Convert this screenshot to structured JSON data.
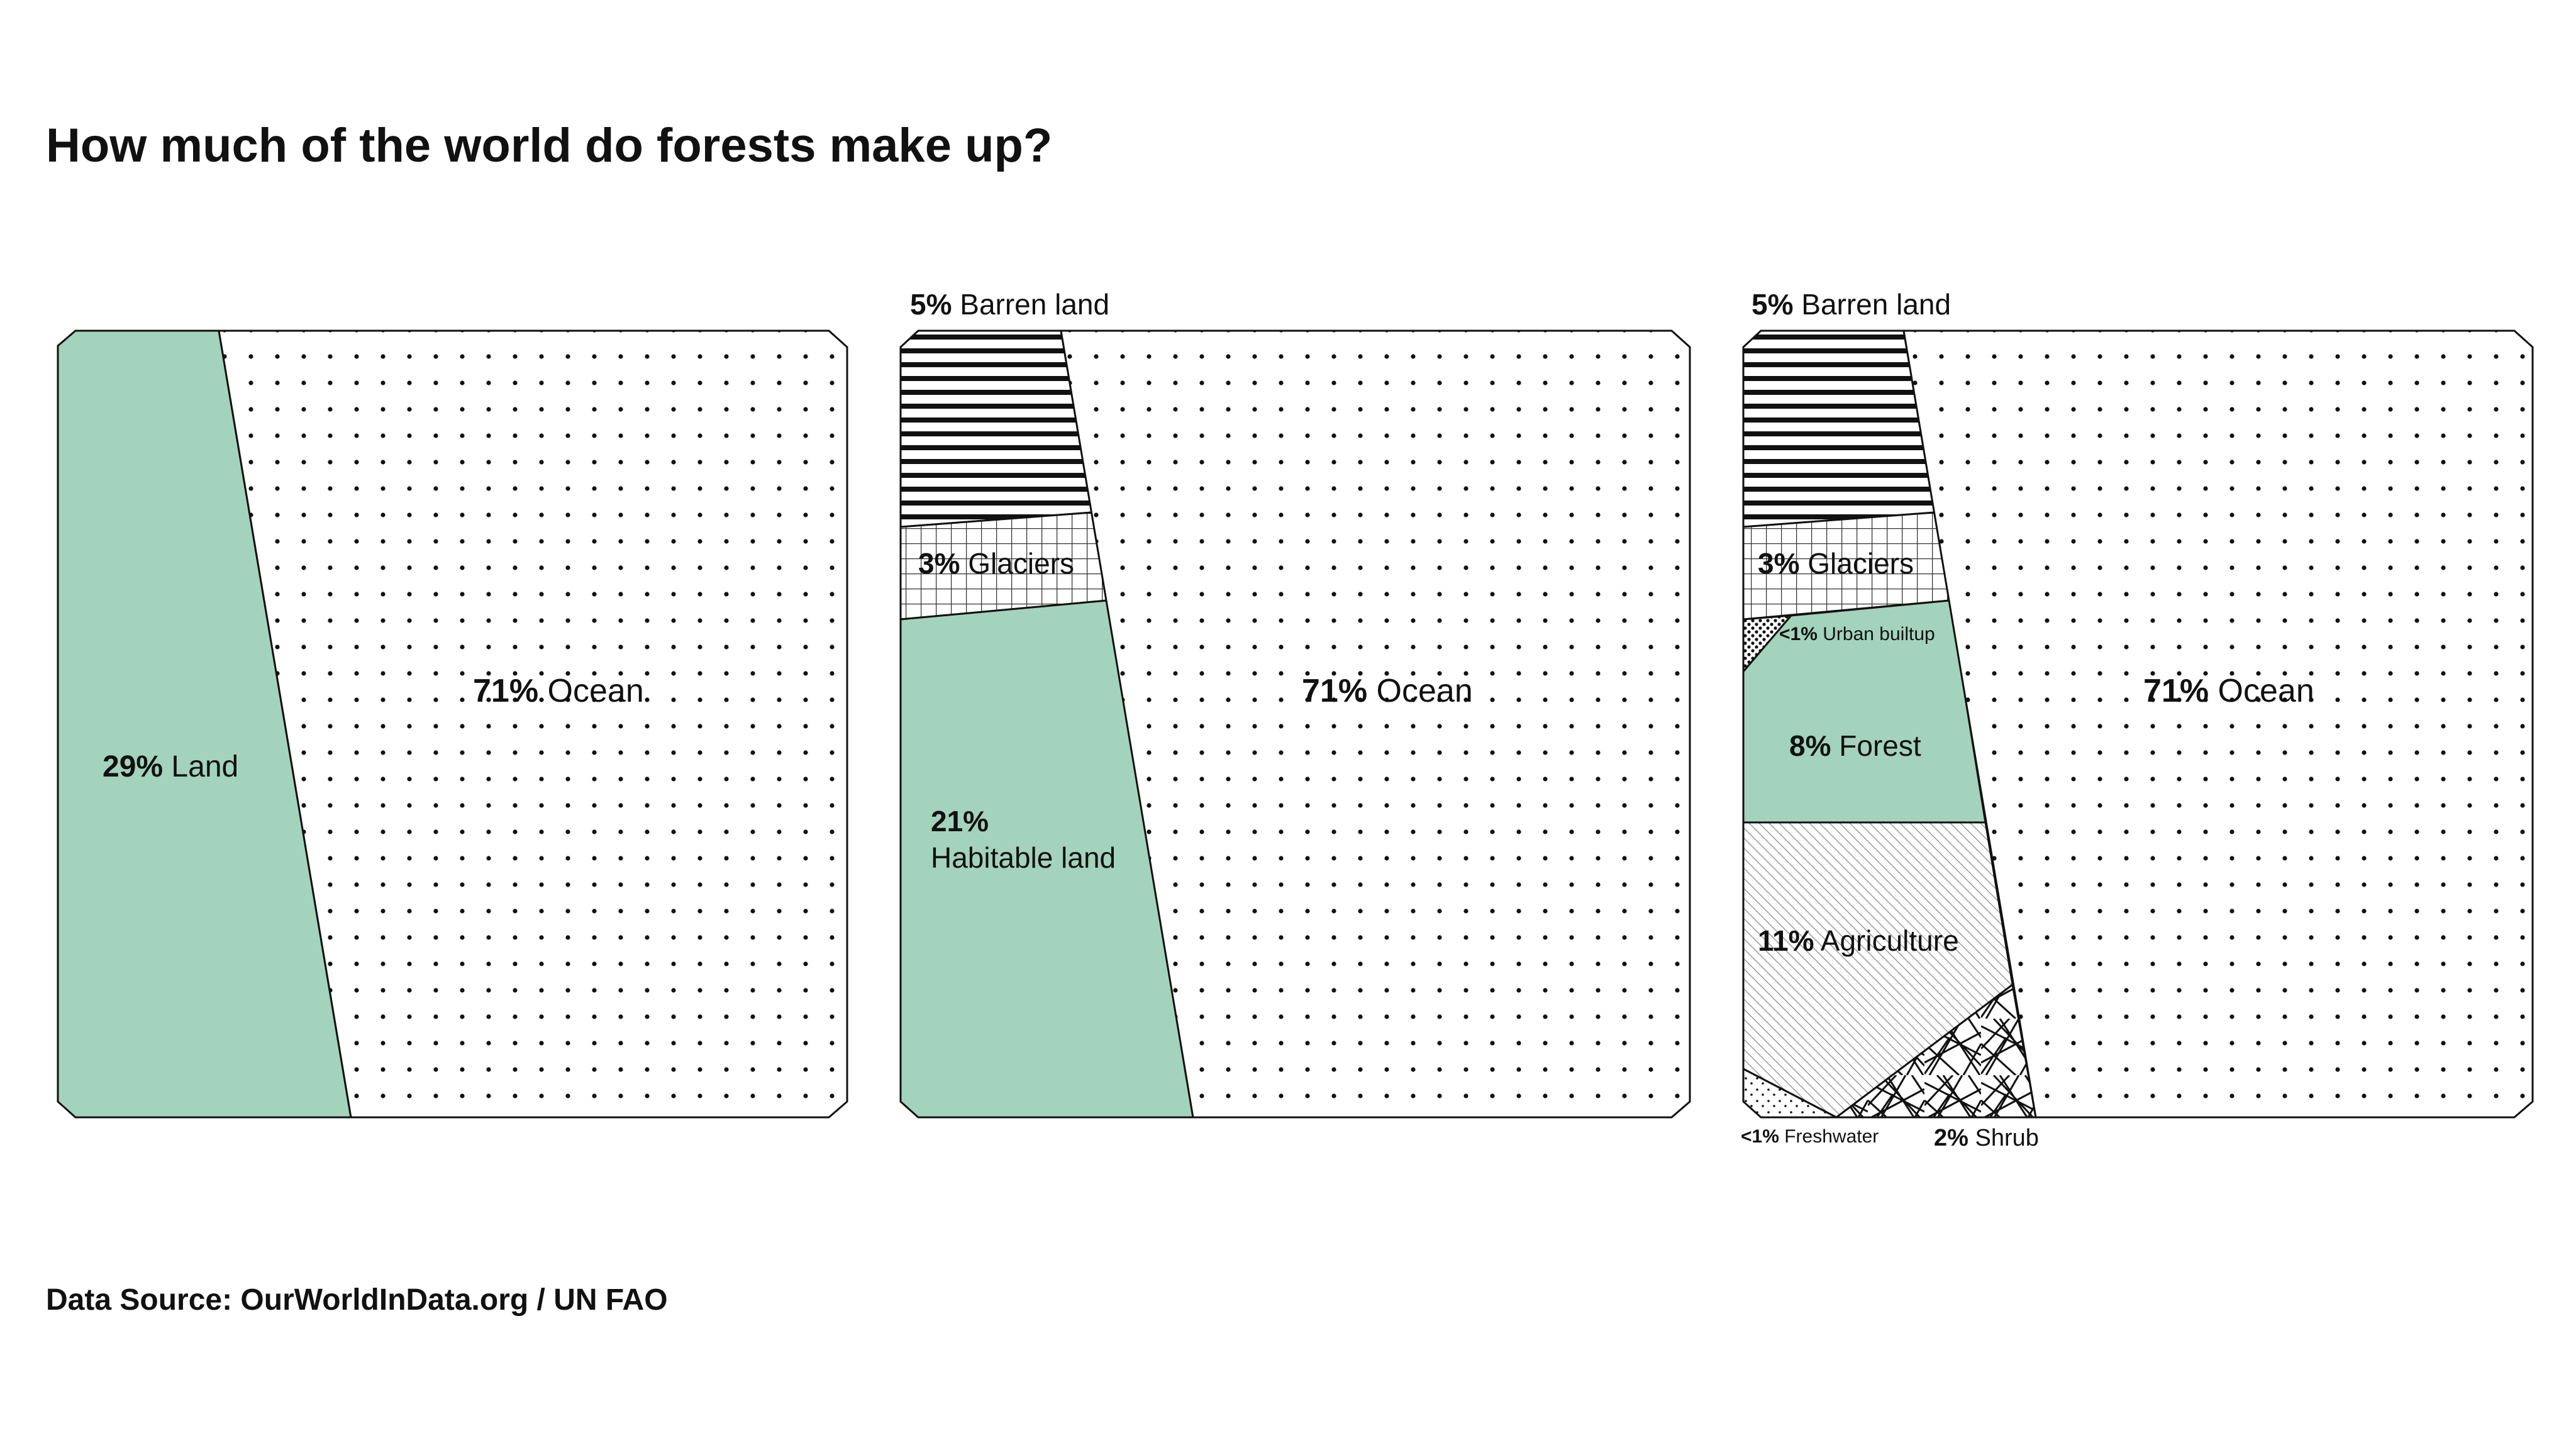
{
  "title": "How much of the world do forests make up?",
  "source": "Data Source: OurWorldInData.org / UN FAO",
  "colors": {
    "forest": "#a3d3bc",
    "outline": "#111111",
    "background": "#ffffff"
  },
  "chart_data": [
    {
      "type": "area",
      "panel": "left",
      "segments": [
        {
          "key": "land",
          "value_pct": "29%",
          "name": "Land",
          "value": 29,
          "pattern": "solid-green"
        },
        {
          "key": "ocean",
          "value_pct": "71%",
          "name": "Ocean",
          "value": 71,
          "pattern": "dots"
        }
      ]
    },
    {
      "type": "area",
      "panel": "middle",
      "segments": [
        {
          "key": "barren",
          "value_pct": "5%",
          "name": "Barren land",
          "value": 5,
          "pattern": "horizontal-lines"
        },
        {
          "key": "glaciers",
          "value_pct": "3%",
          "name": "Glaciers",
          "value": 3,
          "pattern": "grid"
        },
        {
          "key": "habitable",
          "value_pct": "21%",
          "name": "Habitable land",
          "value": 21,
          "pattern": "solid-green"
        },
        {
          "key": "ocean",
          "value_pct": "71%",
          "name": "Ocean",
          "value": 71,
          "pattern": "dots"
        }
      ]
    },
    {
      "type": "area",
      "panel": "right",
      "segments": [
        {
          "key": "barren",
          "value_pct": "5%",
          "name": "Barren land",
          "value": 5,
          "pattern": "horizontal-lines"
        },
        {
          "key": "glaciers",
          "value_pct": "3%",
          "name": "Glaciers",
          "value": 3,
          "pattern": "grid"
        },
        {
          "key": "urban",
          "value_pct": "<1%",
          "name": "Urban builtup",
          "value": 1,
          "pattern": "dense-dots"
        },
        {
          "key": "forest",
          "value_pct": "8%",
          "name": "Forest",
          "value": 8,
          "pattern": "solid-green"
        },
        {
          "key": "agriculture",
          "value_pct": "11%",
          "name": "Agriculture",
          "value": 11,
          "pattern": "diagonal-lines"
        },
        {
          "key": "freshwater",
          "value_pct": "<1%",
          "name": "Freshwater",
          "value": 1,
          "pattern": "sparse-dots"
        },
        {
          "key": "shrub",
          "value_pct": "2%",
          "name": "Shrub",
          "value": 2,
          "pattern": "scribble"
        },
        {
          "key": "ocean",
          "value_pct": "71%",
          "name": "Ocean",
          "value": 71,
          "pattern": "dots"
        }
      ]
    }
  ]
}
